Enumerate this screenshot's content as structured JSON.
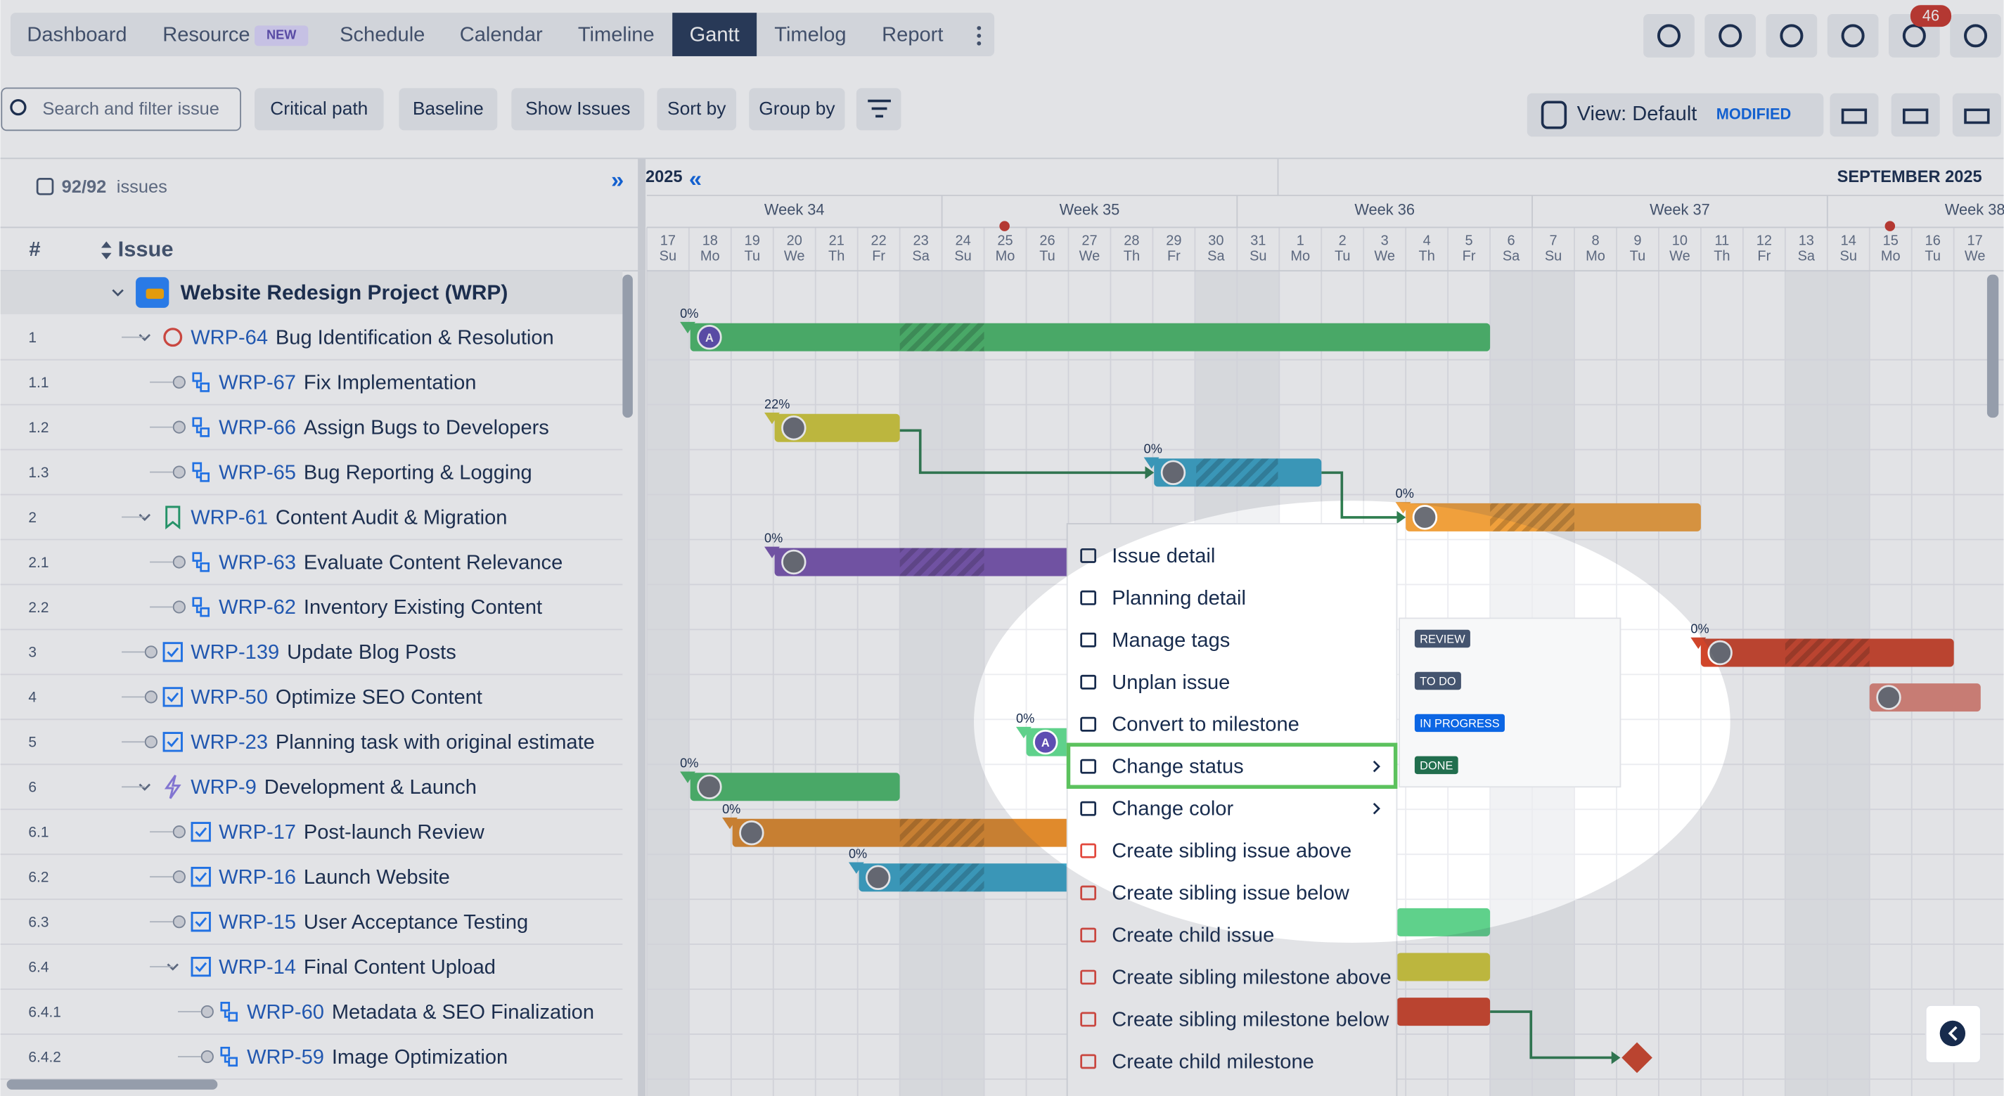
{
  "nav": {
    "tabs": [
      "Dashboard",
      "Resource",
      "Schedule",
      "Calendar",
      "Timeline",
      "Gantt",
      "Timelog",
      "Report"
    ],
    "new_badge": "NEW",
    "notifications": "46"
  },
  "toolbar": {
    "search_placeholder": "Search and filter issue",
    "buttons": [
      "Critical path",
      "Baseline",
      "Show Issues",
      "Sort by",
      "Group by"
    ],
    "view": "View: Default",
    "modified": "MODIFIED"
  },
  "panel": {
    "issue_count": "92/92",
    "issues_label": "issues",
    "col_hash": "#",
    "col_issue": "Issue",
    "project": "Website Redesign Project  (WRP)",
    "rows": [
      {
        "number": "1",
        "key": "WRP-64",
        "title": "Bug Identification & Resolution"
      },
      {
        "number": "1.1",
        "key": "WRP-67",
        "title": "Fix Implementation"
      },
      {
        "number": "1.2",
        "key": "WRP-66",
        "title": "Assign Bugs to Developers"
      },
      {
        "number": "1.3",
        "key": "WRP-65",
        "title": "Bug Reporting & Logging"
      },
      {
        "number": "2",
        "key": "WRP-61",
        "title": "Content Audit & Migration"
      },
      {
        "number": "2.1",
        "key": "WRP-63",
        "title": "Evaluate Content Relevance"
      },
      {
        "number": "2.2",
        "key": "WRP-62",
        "title": "Inventory Existing Content"
      },
      {
        "number": "3",
        "key": "WRP-139",
        "title": "Update Blog Posts"
      },
      {
        "number": "4",
        "key": "WRP-50",
        "title": "Optimize SEO Content"
      },
      {
        "number": "5",
        "key": "WRP-23",
        "title": "Planning task with original estimate"
      },
      {
        "number": "6",
        "key": "WRP-9",
        "title": "Development & Launch"
      },
      {
        "number": "6.1",
        "key": "WRP-17",
        "title": "Post-launch Review"
      },
      {
        "number": "6.2",
        "key": "WRP-16",
        "title": "Launch Website"
      },
      {
        "number": "6.3",
        "key": "WRP-15",
        "title": "User Acceptance Testing"
      },
      {
        "number": "6.4",
        "key": "WRP-14",
        "title": "Final Content Upload"
      },
      {
        "number": "6.4.1",
        "key": "WRP-60",
        "title": "Metadata & SEO Finalization"
      },
      {
        "number": "6.4.2",
        "key": "WRP-59",
        "title": "Image Optimization"
      }
    ]
  },
  "timeline": {
    "year": "2025",
    "month": "SEPTEMBER 2025",
    "weeks": [
      "Week 34",
      "Week 35",
      "Week 36",
      "Week 37",
      "Week 38"
    ],
    "days": [
      [
        "17",
        "Su"
      ],
      [
        "18",
        "Mo"
      ],
      [
        "19",
        "Tu"
      ],
      [
        "20",
        "We"
      ],
      [
        "21",
        "Th"
      ],
      [
        "22",
        "Fr"
      ],
      [
        "23",
        "Sa"
      ],
      [
        "24",
        "Su"
      ],
      [
        "25",
        "Mo"
      ],
      [
        "26",
        "Tu"
      ],
      [
        "27",
        "We"
      ],
      [
        "28",
        "Th"
      ],
      [
        "29",
        "Fr"
      ],
      [
        "30",
        "Sa"
      ],
      [
        "31",
        "Su"
      ],
      [
        "1",
        "Mo"
      ],
      [
        "2",
        "Tu"
      ],
      [
        "3",
        "We"
      ],
      [
        "4",
        "Th"
      ],
      [
        "5",
        "Fr"
      ],
      [
        "6",
        "Sa"
      ],
      [
        "7",
        "Su"
      ],
      [
        "8",
        "Mo"
      ],
      [
        "9",
        "Tu"
      ],
      [
        "10",
        "We"
      ],
      [
        "11",
        "Th"
      ],
      [
        "12",
        "Fr"
      ],
      [
        "13",
        "Sa"
      ],
      [
        "14",
        "Su"
      ],
      [
        "15",
        "Mo"
      ],
      [
        "16",
        "Tu"
      ],
      [
        "17",
        "We"
      ]
    ],
    "bar_labels": [
      "0%",
      "22%",
      "0%",
      "0%",
      "0%",
      "0%",
      "0%",
      "0%",
      "0%",
      "0%"
    ],
    "avatar_initial": "A"
  },
  "context_menu": {
    "items": [
      "Issue detail",
      "Planning detail",
      "Manage tags",
      "Unplan issue",
      "Convert to milestone",
      "Change status",
      "Change color",
      "Create sibling issue above",
      "Create sibling issue below",
      "Create child issue",
      "Create sibling milestone above",
      "Create sibling milestone below",
      "Create child milestone"
    ],
    "statuses": [
      "REVIEW",
      "TO DO",
      "IN PROGRESS",
      "DONE"
    ]
  }
}
